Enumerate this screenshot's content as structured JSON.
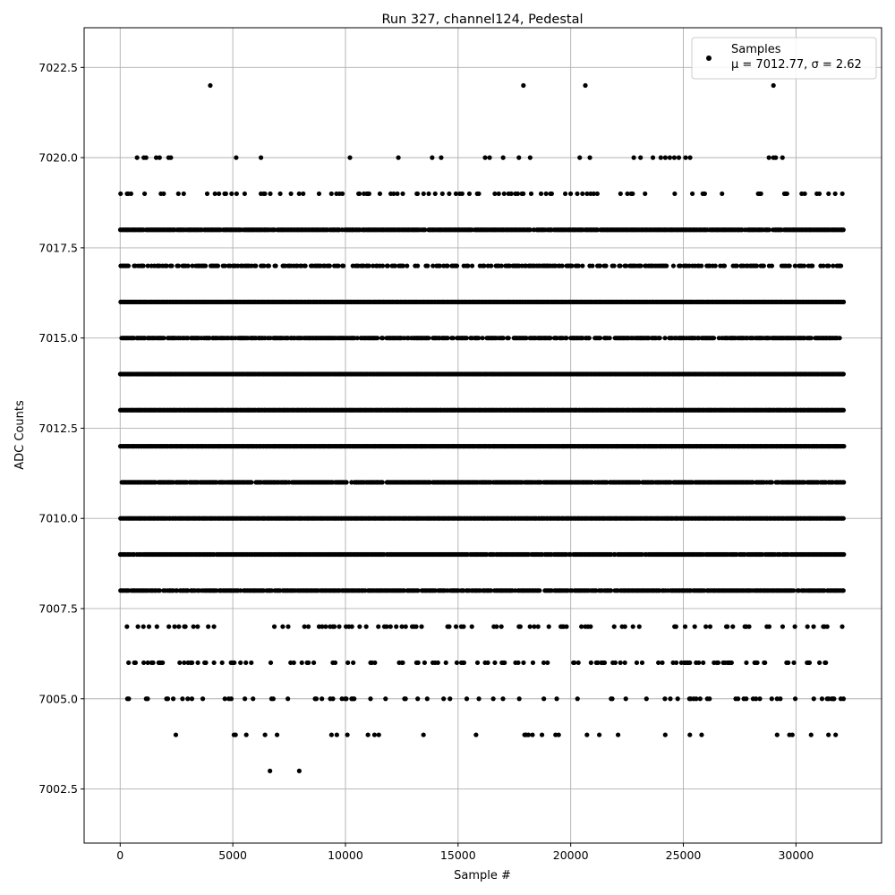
{
  "chart_data": {
    "type": "scatter",
    "title": "Run 327, channel124, Pedestal",
    "xlabel": "Sample #",
    "ylabel": "ADC Counts",
    "xlim": [
      -1600,
      33800
    ],
    "ylim": [
      7001.0,
      7023.6
    ],
    "xticks": [
      0,
      5000,
      10000,
      15000,
      20000,
      25000,
      30000
    ],
    "yticks": [
      7002.5,
      7005.0,
      7007.5,
      7010.0,
      7012.5,
      7015.0,
      7017.5,
      7020.0,
      7022.5
    ],
    "grid": true,
    "marker_color": "#000000",
    "legend": {
      "position": "top-right",
      "entries": [
        "Samples",
        "μ = 7012.77, σ = 2.62"
      ]
    },
    "sample_count": 32100,
    "series": [
      {
        "name": "Samples",
        "level_density": [
          {
            "y": 7022,
            "x": [
              4000,
              17900,
              20650,
              29000
            ]
          },
          {
            "y": 7020,
            "x": [
              750,
              1050,
              1150,
              1600,
              1750,
              2150,
              2250,
              5150,
              6250,
              10200,
              12350,
              13850,
              14250,
              16200,
              16400,
              17000,
              17700,
              18200,
              20400,
              20850,
              22800,
              23100,
              23650,
              24000,
              24200,
              24400,
              24600,
              24800,
              25100,
              25300,
              28800,
              29000,
              29100,
              29400
            ]
          },
          {
            "y": 7003,
            "x": [
              6650,
              7950
            ]
          },
          {
            "y": 7018,
            "fill": 0.95
          },
          {
            "y": 7017,
            "fill": 0.55
          },
          {
            "y": 7016,
            "fill": 1.0
          },
          {
            "y": 7015,
            "fill": 0.8
          },
          {
            "y": 7014,
            "fill": 1.0
          },
          {
            "y": 7013,
            "fill": 1.0
          },
          {
            "y": 7012,
            "fill": 1.0
          },
          {
            "y": 7011,
            "fill": 0.9
          },
          {
            "y": 7010,
            "fill": 1.0
          },
          {
            "y": 7009,
            "fill": 0.95
          },
          {
            "y": 7008,
            "fill": 0.9
          },
          {
            "y": 7019,
            "fill": 0.18
          },
          {
            "y": 7007,
            "fill": 0.18
          },
          {
            "y": 7006,
            "fill": 0.22
          },
          {
            "y": 7005,
            "fill": 0.12
          },
          {
            "y": 7004,
            "fill": 0.05
          }
        ]
      }
    ]
  }
}
